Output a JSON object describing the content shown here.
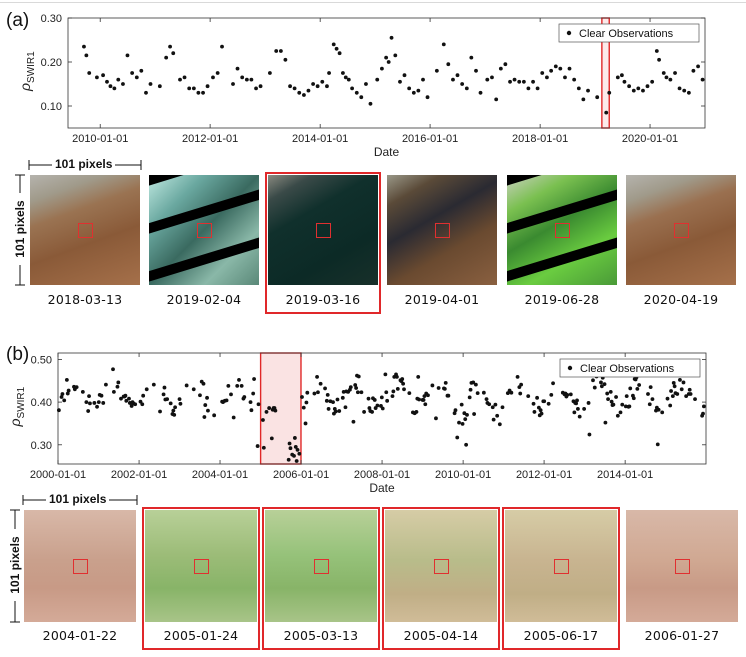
{
  "panel_a": {
    "label": "(a)",
    "legend": "Clear Observations",
    "size_label_h": "101 pixels",
    "size_label_v": "101 pixels",
    "chart_data": {
      "type": "scatter",
      "ylabel": "ρSWIR1",
      "ylabel_base": "ρ",
      "ylabel_sub": "SWIR1",
      "xlabel": "Date",
      "ylim": [
        0.05,
        0.3
      ],
      "yticks": [
        "0.10",
        "0.20",
        "0.30"
      ],
      "ytick_values": [
        0.1,
        0.2,
        0.3
      ],
      "xticks": [
        "2010-01-01",
        "2012-01-01",
        "2014-01-01",
        "2016-01-01",
        "2018-01-01",
        "2020-01-01"
      ],
      "xlim": [
        "2009-06-01",
        "2020-12-31"
      ],
      "highlight": [
        "2019-02-15",
        "2019-04-05"
      ],
      "legend_position": "top-right",
      "series": [
        {
          "name": "Clear Observations",
          "points": [
            [
              "2009-09-15",
              0.235
            ],
            [
              "2009-10-01",
              0.215
            ],
            [
              "2009-10-20",
              0.175
            ],
            [
              "2009-12-10",
              0.165
            ],
            [
              "2010-01-20",
              0.17
            ],
            [
              "2010-02-15",
              0.155
            ],
            [
              "2010-03-10",
              0.145
            ],
            [
              "2010-04-05",
              0.14
            ],
            [
              "2010-05-01",
              0.16
            ],
            [
              "2010-06-01",
              0.15
            ],
            [
              "2010-07-01",
              0.215
            ],
            [
              "2010-08-01",
              0.175
            ],
            [
              "2010-09-01",
              0.165
            ],
            [
              "2010-10-01",
              0.18
            ],
            [
              "2010-11-01",
              0.13
            ],
            [
              "2010-12-01",
              0.15
            ],
            [
              "2011-02-01",
              0.145
            ],
            [
              "2011-03-15",
              0.21
            ],
            [
              "2011-04-10",
              0.235
            ],
            [
              "2011-05-01",
              0.22
            ],
            [
              "2011-06-15",
              0.16
            ],
            [
              "2011-07-15",
              0.165
            ],
            [
              "2011-08-15",
              0.14
            ],
            [
              "2011-09-15",
              0.14
            ],
            [
              "2011-10-15",
              0.13
            ],
            [
              "2011-11-15",
              0.13
            ],
            [
              "2011-12-15",
              0.145
            ],
            [
              "2012-01-20",
              0.165
            ],
            [
              "2012-02-20",
              0.175
            ],
            [
              "2012-03-20",
              0.235
            ],
            [
              "2012-06-01",
              0.15
            ],
            [
              "2012-07-01",
              0.185
            ],
            [
              "2012-08-01",
              0.165
            ],
            [
              "2012-09-01",
              0.16
            ],
            [
              "2012-10-01",
              0.16
            ],
            [
              "2012-11-01",
              0.14
            ],
            [
              "2012-12-01",
              0.145
            ],
            [
              "2013-02-01",
              0.175
            ],
            [
              "2013-03-15",
              0.225
            ],
            [
              "2013-04-15",
              0.225
            ],
            [
              "2013-05-15",
              0.205
            ],
            [
              "2013-06-15",
              0.145
            ],
            [
              "2013-07-15",
              0.14
            ],
            [
              "2013-08-15",
              0.13
            ],
            [
              "2013-09-15",
              0.125
            ],
            [
              "2013-10-15",
              0.135
            ],
            [
              "2013-11-15",
              0.15
            ],
            [
              "2013-12-15",
              0.145
            ],
            [
              "2014-01-15",
              0.155
            ],
            [
              "2014-02-15",
              0.145
            ],
            [
              "2014-03-01",
              0.175
            ],
            [
              "2014-04-01",
              0.24
            ],
            [
              "2014-04-20",
              0.23
            ],
            [
              "2014-05-10",
              0.22
            ],
            [
              "2014-06-01",
              0.175
            ],
            [
              "2014-06-20",
              0.165
            ],
            [
              "2014-07-10",
              0.16
            ],
            [
              "2014-08-01",
              0.14
            ],
            [
              "2014-09-01",
              0.13
            ],
            [
              "2014-10-01",
              0.12
            ],
            [
              "2014-11-01",
              0.15
            ],
            [
              "2014-12-01",
              0.105
            ],
            [
              "2015-01-15",
              0.16
            ],
            [
              "2015-02-15",
              0.185
            ],
            [
              "2015-03-15",
              0.21
            ],
            [
              "2015-04-01",
              0.2
            ],
            [
              "2015-04-20",
              0.255
            ],
            [
              "2015-05-15",
              0.215
            ],
            [
              "2015-06-15",
              0.155
            ],
            [
              "2015-07-15",
              0.17
            ],
            [
              "2015-08-15",
              0.14
            ],
            [
              "2015-09-15",
              0.13
            ],
            [
              "2015-10-15",
              0.135
            ],
            [
              "2015-11-15",
              0.16
            ],
            [
              "2015-12-15",
              0.12
            ],
            [
              "2016-02-15",
              0.18
            ],
            [
              "2016-04-01",
              0.24
            ],
            [
              "2016-05-01",
              0.195
            ],
            [
              "2016-06-01",
              0.16
            ],
            [
              "2016-07-01",
              0.17
            ],
            [
              "2016-08-01",
              0.15
            ],
            [
              "2016-09-01",
              0.14
            ],
            [
              "2016-10-01",
              0.21
            ],
            [
              "2016-11-01",
              0.18
            ],
            [
              "2016-12-01",
              0.13
            ],
            [
              "2017-01-15",
              0.16
            ],
            [
              "2017-02-15",
              0.165
            ],
            [
              "2017-03-15",
              0.115
            ],
            [
              "2017-04-15",
              0.185
            ],
            [
              "2017-05-15",
              0.195
            ],
            [
              "2017-06-15",
              0.155
            ],
            [
              "2017-07-15",
              0.16
            ],
            [
              "2017-08-15",
              0.155
            ],
            [
              "2017-09-15",
              0.155
            ],
            [
              "2017-10-15",
              0.14
            ],
            [
              "2017-11-15",
              0.155
            ],
            [
              "2017-12-15",
              0.14
            ],
            [
              "2018-01-15",
              0.175
            ],
            [
              "2018-02-15",
              0.165
            ],
            [
              "2018-03-15",
              0.18
            ],
            [
              "2018-04-15",
              0.19
            ],
            [
              "2018-05-15",
              0.185
            ],
            [
              "2018-06-15",
              0.165
            ],
            [
              "2018-07-15",
              0.185
            ],
            [
              "2018-08-15",
              0.16
            ],
            [
              "2018-09-15",
              0.14
            ],
            [
              "2018-10-15",
              0.115
            ],
            [
              "2018-11-15",
              0.135
            ],
            [
              "2019-01-15",
              0.12
            ],
            [
              "2019-03-16",
              0.085
            ],
            [
              "2019-04-05",
              0.13
            ],
            [
              "2019-06-01",
              0.165
            ],
            [
              "2019-06-28",
              0.17
            ],
            [
              "2019-07-15",
              0.155
            ],
            [
              "2019-08-15",
              0.145
            ],
            [
              "2019-09-15",
              0.135
            ],
            [
              "2019-10-15",
              0.14
            ],
            [
              "2019-11-15",
              0.135
            ],
            [
              "2019-12-15",
              0.145
            ],
            [
              "2020-01-15",
              0.155
            ],
            [
              "2020-02-15",
              0.225
            ],
            [
              "2020-03-01",
              0.205
            ],
            [
              "2020-04-01",
              0.175
            ],
            [
              "2020-04-19",
              0.165
            ],
            [
              "2020-05-15",
              0.16
            ],
            [
              "2020-06-15",
              0.175
            ],
            [
              "2020-07-15",
              0.14
            ],
            [
              "2020-08-15",
              0.135
            ],
            [
              "2020-09-15",
              0.13
            ],
            [
              "2020-10-15",
              0.18
            ],
            [
              "2020-11-15",
              0.19
            ],
            [
              "2020-12-15",
              0.16
            ]
          ]
        }
      ]
    },
    "thumbnails": [
      {
        "date": "2018-03-13",
        "selected": false,
        "base": "#9a7352",
        "accent": "#6a5a40",
        "style": "normal"
      },
      {
        "date": "2019-02-04",
        "selected": false,
        "base": "#5a8c82",
        "accent": "#9ee0d8",
        "style": "stripes"
      },
      {
        "date": "2019-03-16",
        "selected": true,
        "base": "#16302a",
        "accent": "#3a4a3a",
        "style": "flood"
      },
      {
        "date": "2019-04-01",
        "selected": false,
        "base": "#4a3a28",
        "accent": "#2a3040",
        "style": "drying"
      },
      {
        "date": "2019-06-28",
        "selected": false,
        "base": "#5a9a3a",
        "accent": "#9ae060",
        "style": "greenstripes"
      },
      {
        "date": "2020-04-19",
        "selected": false,
        "base": "#9a7050",
        "accent": "#6a6040",
        "style": "normal"
      }
    ]
  },
  "panel_b": {
    "label": "(b)",
    "legend": "Clear Observations",
    "size_label_h": "101 pixels",
    "size_label_v": "101 pixels",
    "chart_data": {
      "type": "scatter",
      "ylabel": "ρSWIR1",
      "ylabel_base": "ρ",
      "ylabel_sub": "SWIR1",
      "xlabel": "Date",
      "ylim": [
        0.255,
        0.515
      ],
      "yticks": [
        "0.30",
        "0.40",
        "0.50"
      ],
      "ytick_values": [
        0.3,
        0.4,
        0.5
      ],
      "xticks": [
        "2000-01-01",
        "2002-01-01",
        "2004-01-01",
        "2006-01-01",
        "2008-01-01",
        "2010-01-01",
        "2012-01-01",
        "2014-01-01"
      ],
      "xlim": [
        "2000-01-01",
        "2015-12-31"
      ],
      "highlight": [
        "2005-01-01",
        "2005-12-31"
      ],
      "legend_position": "top-right",
      "series": [
        {
          "name": "Clear Observations",
          "generated_pattern": "seasonal",
          "points": []
        }
      ]
    },
    "thumbnails": [
      {
        "date": "2004-01-22",
        "selected": false,
        "base": "#c9a08c",
        "accent": "#b9887a",
        "style": "desert"
      },
      {
        "date": "2005-01-24",
        "selected": true,
        "base": "#9cbc78",
        "accent": "#7aa860",
        "style": "green"
      },
      {
        "date": "2005-03-13",
        "selected": true,
        "base": "#96c27a",
        "accent": "#78ae5e",
        "style": "green"
      },
      {
        "date": "2005-04-14",
        "selected": true,
        "base": "#b8bc8a",
        "accent": "#a0a878",
        "style": "tan"
      },
      {
        "date": "2005-06-17",
        "selected": true,
        "base": "#c8b490",
        "accent": "#b09c7c",
        "style": "tan"
      },
      {
        "date": "2006-01-27",
        "selected": false,
        "base": "#d0a892",
        "accent": "#bc9080",
        "style": "desert"
      }
    ]
  }
}
